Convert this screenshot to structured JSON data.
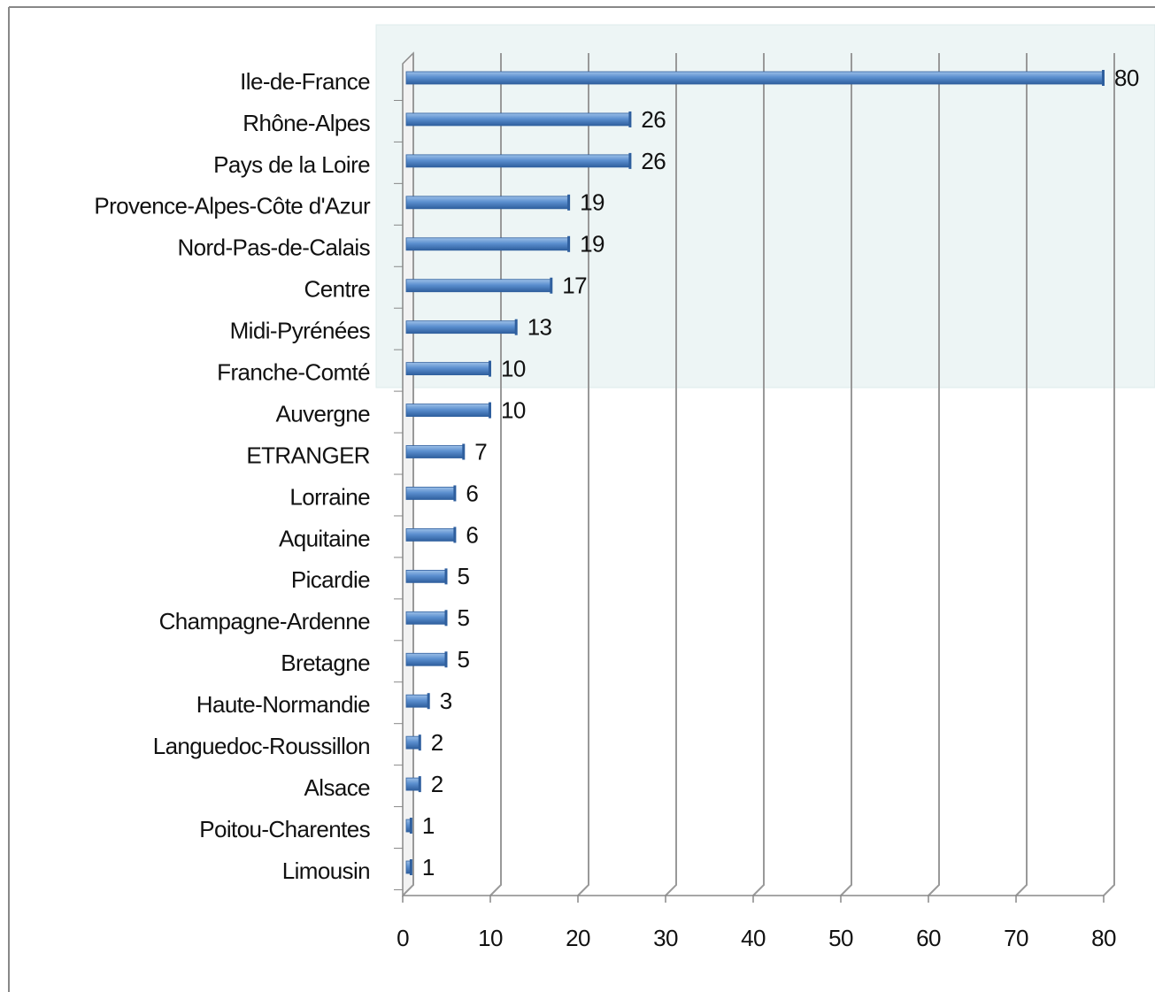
{
  "chart_data": {
    "type": "barh",
    "categories": [
      "Ile-de-France",
      "Rhône-Alpes",
      "Pays de la Loire",
      "Provence-Alpes-Côte d'Azur",
      "Nord-Pas-de-Calais",
      "Centre",
      "Midi-Pyrénées",
      "Franche-Comté",
      "Auvergne",
      "ETRANGER",
      "Lorraine",
      "Aquitaine",
      "Picardie",
      "Champagne-Ardenne",
      "Bretagne",
      "Haute-Normandie",
      "Languedoc-Roussillon",
      "Alsace",
      "Poitou-Charentes",
      "Limousin"
    ],
    "values": [
      80,
      26,
      26,
      19,
      19,
      17,
      13,
      10,
      10,
      7,
      6,
      6,
      5,
      5,
      5,
      3,
      2,
      2,
      1,
      1
    ],
    "color": "#4f81bd",
    "xlim": [
      0,
      80
    ],
    "xticks": [
      0,
      10,
      20,
      30,
      40,
      50,
      60,
      70,
      80
    ],
    "grid": true
  }
}
